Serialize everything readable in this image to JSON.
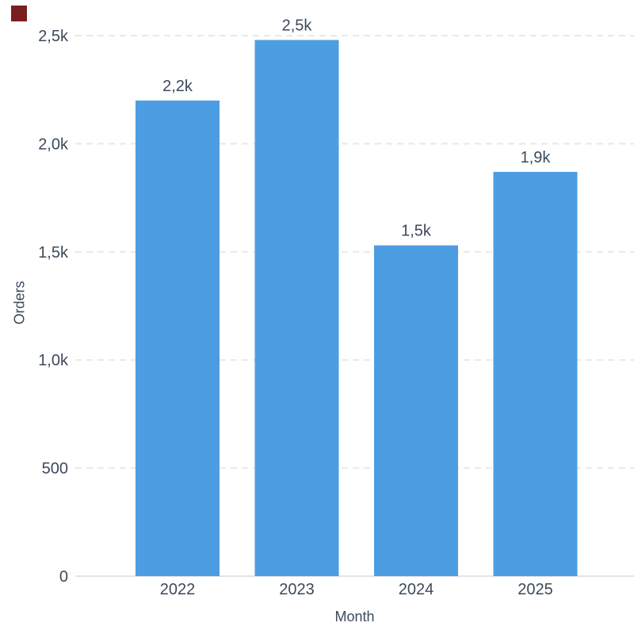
{
  "page": {
    "background": "#FFFFFF"
  },
  "corner_marker": {
    "color": "#7B1E1E"
  },
  "chart_data": {
    "type": "bar",
    "title": "",
    "categories": [
      "2022",
      "2023",
      "2024",
      "2025"
    ],
    "values": [
      2200,
      2480,
      1530,
      1870
    ],
    "value_labels": [
      "2,2k",
      "2,5k",
      "1,5k",
      "1,9k"
    ],
    "xlabel": "Month",
    "ylabel": "Orders",
    "ylim": [
      0,
      2500
    ],
    "yticks": [
      0,
      500,
      1000,
      1500,
      2000,
      2500
    ],
    "ytick_labels": [
      "0",
      "500",
      "1,0k",
      "1,5k",
      "2,0k",
      "2,5k"
    ],
    "grid": "horizontal-dashed",
    "legend": "none",
    "bar_color": "#4D9DE3",
    "label_color": "#3C4A5B",
    "gridline_color": "#E8E8E8",
    "axis_line_color": "#E4E4E4"
  }
}
